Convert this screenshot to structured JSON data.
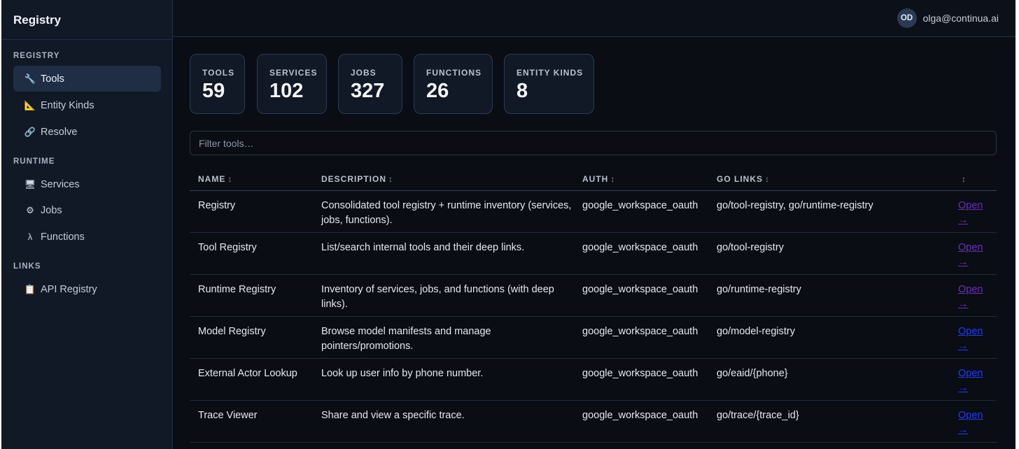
{
  "app": {
    "title": "Registry"
  },
  "user": {
    "initials": "OD",
    "email": "olga@continua.ai"
  },
  "sidebar": {
    "sections": [
      {
        "label": "REGISTRY",
        "items": [
          {
            "icon": "wrench-icon",
            "glyph": "🔧",
            "label": "Tools",
            "active": true
          },
          {
            "icon": "ruler-icon",
            "glyph": "📐",
            "label": "Entity Kinds",
            "active": false
          },
          {
            "icon": "link-icon",
            "glyph": "🔗",
            "label": "Resolve",
            "active": false
          }
        ]
      },
      {
        "label": "RUNTIME",
        "items": [
          {
            "icon": "monitor-icon",
            "glyph": "🖥",
            "label": "Services",
            "active": false
          },
          {
            "icon": "gear-icon",
            "glyph": "⚙",
            "label": "Jobs",
            "active": false
          },
          {
            "icon": "lambda-icon",
            "glyph": "λ",
            "label": "Functions",
            "active": false
          }
        ]
      },
      {
        "label": "LINKS",
        "items": [
          {
            "icon": "clipboard-icon",
            "glyph": "📋",
            "label": "API Registry",
            "active": false
          }
        ]
      }
    ]
  },
  "stats": [
    {
      "label": "TOOLS",
      "value": "59"
    },
    {
      "label": "SERVICES",
      "value": "102"
    },
    {
      "label": "JOBS",
      "value": "327"
    },
    {
      "label": "FUNCTIONS",
      "value": "26"
    },
    {
      "label": "ENTITY KINDS",
      "value": "8"
    }
  ],
  "filter": {
    "placeholder": "Filter tools…"
  },
  "table": {
    "sort_glyph": "↕",
    "columns": [
      "NAME",
      "DESCRIPTION",
      "AUTH",
      "GO LINKS",
      ""
    ],
    "rows": [
      {
        "name": "Registry",
        "description": "Consolidated tool registry + runtime inventory (services, jobs, functions).",
        "auth": "google_workspace_oauth",
        "go_links": "go/tool-registry, go/runtime-registry",
        "open": "Open →",
        "visited": true
      },
      {
        "name": "Tool Registry",
        "description": "List/search internal tools and their deep links.",
        "auth": "google_workspace_oauth",
        "go_links": "go/tool-registry",
        "open": "Open →",
        "visited": true
      },
      {
        "name": "Runtime Registry",
        "description": "Inventory of services, jobs, and functions (with deep links).",
        "auth": "google_workspace_oauth",
        "go_links": "go/runtime-registry",
        "open": "Open →",
        "visited": true
      },
      {
        "name": "Model Registry",
        "description": "Browse model manifests and manage pointers/promotions.",
        "auth": "google_workspace_oauth",
        "go_links": "go/model-registry",
        "open": "Open →",
        "visited": false
      },
      {
        "name": "External Actor Lookup",
        "description": "Look up user info by phone number.",
        "auth": "google_workspace_oauth",
        "go_links": "go/eaid/{phone}",
        "open": "Open →",
        "visited": false
      },
      {
        "name": "Trace Viewer",
        "description": "Share and view a specific trace.",
        "auth": "google_workspace_oauth",
        "go_links": "go/trace/{trace_id}",
        "open": "Open →",
        "visited": false
      }
    ]
  },
  "colors": {
    "background": "#0a0d13",
    "sidebar": "#111927",
    "active_item": "#1f2d45",
    "visited_link": "#6a2fbb",
    "link": "#1f3dff"
  }
}
